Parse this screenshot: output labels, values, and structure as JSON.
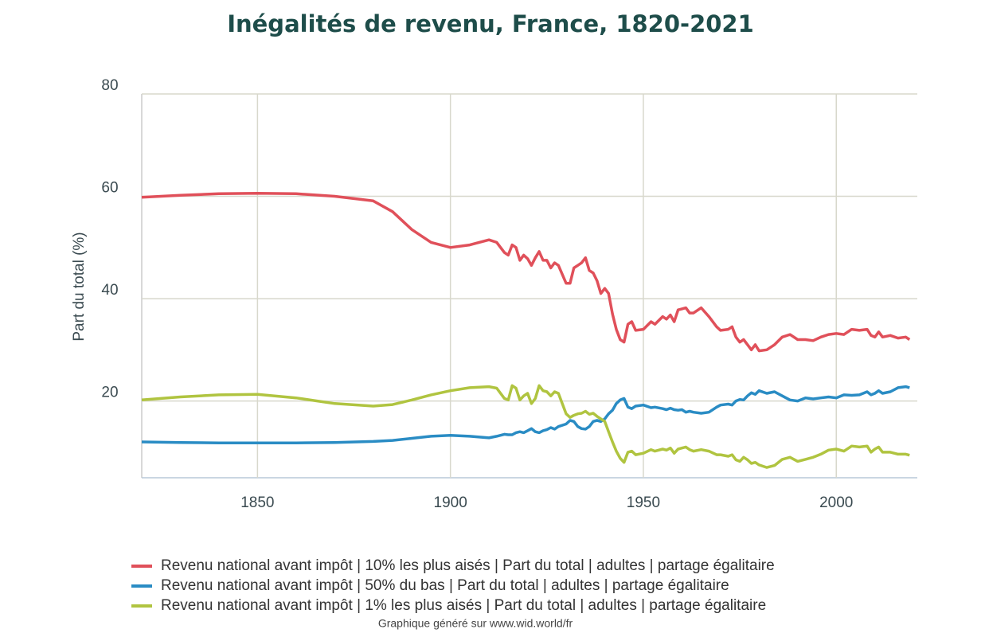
{
  "chart_data": {
    "type": "line",
    "title": "Inégalités de revenu, France, 1820-2021",
    "y_label": "Part du total (%)",
    "footer": "Graphique généré sur www.wid.world/fr",
    "xlim": [
      1820,
      2021
    ],
    "xticks": [
      1850,
      1900,
      1950,
      2000
    ],
    "ylim": [
      5,
      80
    ],
    "yticks": [
      20,
      40,
      60,
      80
    ],
    "grid": true,
    "legend": "bottom",
    "x": [
      1820,
      1830,
      1840,
      1850,
      1860,
      1870,
      1880,
      1885,
      1890,
      1895,
      1900,
      1905,
      1910,
      1912,
      1914,
      1915,
      1916,
      1917,
      1918,
      1919,
      1920,
      1921,
      1922,
      1923,
      1924,
      1925,
      1926,
      1927,
      1928,
      1930,
      1931,
      1932,
      1933,
      1934,
      1935,
      1936,
      1937,
      1938,
      1939,
      1940,
      1941,
      1942,
      1943,
      1944,
      1945,
      1946,
      1947,
      1948,
      1950,
      1952,
      1953,
      1955,
      1956,
      1957,
      1958,
      1959,
      1960,
      1961,
      1962,
      1963,
      1965,
      1967,
      1969,
      1970,
      1972,
      1973,
      1974,
      1975,
      1976,
      1977,
      1978,
      1979,
      1980,
      1982,
      1984,
      1986,
      1988,
      1990,
      1992,
      1994,
      1996,
      1998,
      2000,
      2002,
      2004,
      2006,
      2008,
      2009,
      2010,
      2011,
      2012,
      2014,
      2016,
      2018,
      2019,
      2020,
      2021
    ],
    "series": [
      {
        "name": "Revenu national avant impôt | 10% les plus aisés | Part du total | adultes | partage égalitaire",
        "color": "#e0505a",
        "values": [
          59.8,
          60.2,
          60.5,
          60.6,
          60.5,
          60,
          59.1,
          57,
          53.5,
          51,
          50,
          50.5,
          51.5,
          51,
          49,
          48.5,
          50.5,
          50,
          47.5,
          48.5,
          47.8,
          46.5,
          48,
          49.2,
          47.5,
          47.5,
          46,
          47,
          46.5,
          43,
          43,
          46,
          46.5,
          47,
          48,
          45.5,
          45,
          43.5,
          41,
          42,
          41,
          37,
          34,
          32,
          31.5,
          35,
          35.5,
          33.8,
          34,
          35.5,
          35,
          36.5,
          36,
          36.8,
          35.5,
          37.8,
          38,
          38.2,
          37.2,
          37.2,
          38.2,
          36.5,
          34.5,
          33.8,
          34,
          34.5,
          32.5,
          31.5,
          32,
          31,
          30,
          31,
          29.8,
          30,
          31,
          32.5,
          33,
          32,
          32,
          31.8,
          32.5,
          33,
          33.2,
          33,
          34,
          33.8,
          34,
          32.8,
          32.5,
          33.5,
          32.5,
          32.8,
          32.3,
          32.5,
          32,
          null,
          31
        ]
      },
      {
        "name": "Revenu national avant impôt | 50% du bas | Part du total | adultes | partage égalitaire",
        "color": "#2a8cc4",
        "values": [
          12,
          11.9,
          11.8,
          11.8,
          11.8,
          11.9,
          12.1,
          12.3,
          12.7,
          13.1,
          13.3,
          13.1,
          12.8,
          13.1,
          13.5,
          13.4,
          13.4,
          13.8,
          14,
          13.8,
          14.2,
          14.6,
          14,
          13.8,
          14.2,
          14.4,
          14.8,
          14.5,
          15,
          15.5,
          16.2,
          16,
          15,
          14.6,
          14.5,
          15,
          16,
          16.2,
          16,
          16.5,
          17.5,
          18.2,
          19.5,
          20.2,
          20.5,
          18.8,
          18.5,
          19,
          19.2,
          18.7,
          18.8,
          18.5,
          18.3,
          18.6,
          18.3,
          18.2,
          18.3,
          17.8,
          18,
          17.8,
          17.6,
          17.8,
          18.8,
          19.2,
          19.4,
          19.2,
          20,
          20.3,
          20.2,
          21,
          21.6,
          21.3,
          22,
          21.5,
          21.8,
          21,
          20.2,
          20,
          20.6,
          20.4,
          20.6,
          20.8,
          20.6,
          21.2,
          21.1,
          21.2,
          21.8,
          21.2,
          21.5,
          22,
          21.5,
          21.8,
          22.6,
          22.8,
          22.6,
          null,
          23
        ]
      },
      {
        "name": "Revenu national avant impôt | 1% les plus aisés | Part du total | adultes | partage égalitaire",
        "color": "#b0c440",
        "values": [
          20.2,
          20.8,
          21.2,
          21.3,
          20.6,
          19.5,
          19,
          19.3,
          20.2,
          21.2,
          22,
          22.6,
          22.8,
          22.5,
          20.5,
          20.2,
          23,
          22.5,
          20.2,
          21,
          21.5,
          19.5,
          20.5,
          23,
          22,
          21.8,
          21,
          21.8,
          21.5,
          17.5,
          16.8,
          17.2,
          17.5,
          17.6,
          18,
          17.4,
          17.6,
          17,
          16.5,
          16,
          14,
          12,
          10.2,
          8.8,
          8,
          10,
          10.2,
          9.5,
          9.8,
          10.5,
          10.2,
          10.6,
          10.4,
          10.8,
          9.8,
          10.6,
          10.8,
          11,
          10.5,
          10.2,
          10.5,
          10.2,
          9.5,
          9.5,
          9.2,
          9.5,
          8.5,
          8.2,
          9,
          8.5,
          7.8,
          8,
          7.5,
          7,
          7.4,
          8.6,
          9,
          8.2,
          8.6,
          9,
          9.6,
          10.4,
          10.6,
          10.2,
          11.2,
          11,
          11.2,
          10,
          10.6,
          11,
          10,
          10,
          9.6,
          9.6,
          9.4,
          null,
          8.6
        ]
      }
    ]
  }
}
